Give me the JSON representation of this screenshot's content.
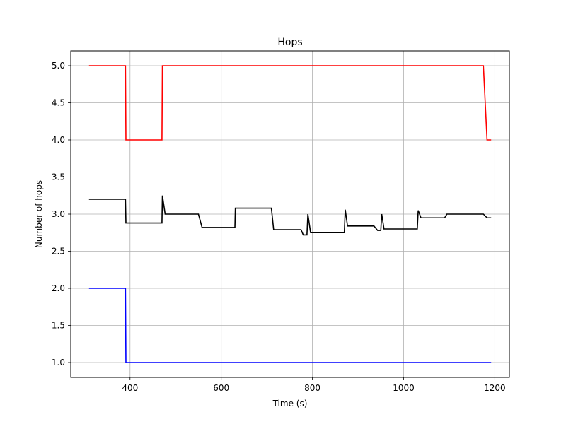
{
  "chart_data": {
    "type": "line",
    "title": "Hops",
    "xlabel": "Time (s)",
    "ylabel": "Number of hops",
    "xlim": [
      270,
      1232
    ],
    "ylim": [
      0.8,
      5.2
    ],
    "xticks": [
      400,
      600,
      800,
      1000,
      1200
    ],
    "yticks": [
      1.0,
      1.5,
      2.0,
      2.5,
      3.0,
      3.5,
      4.0,
      4.5,
      5.0
    ],
    "xtick_labels": [
      "400",
      "600",
      "800",
      "1000",
      "1200"
    ],
    "ytick_labels": [
      "1.0",
      "1.5",
      "2.0",
      "2.5",
      "3.0",
      "3.5",
      "4.0",
      "4.5",
      "5.0"
    ],
    "grid": true,
    "series": [
      {
        "color": "#ff0000",
        "x": [
          310,
          390,
          391,
          470,
          471,
          1175,
          1183,
          1192
        ],
        "y": [
          5.0,
          5.0,
          4.0,
          4.0,
          5.0,
          5.0,
          4.0,
          4.0
        ]
      },
      {
        "color": "#000000",
        "x": [
          310,
          390,
          391,
          470,
          471,
          477,
          550,
          558,
          630,
          631,
          636,
          710,
          715,
          775,
          780,
          788,
          790,
          796,
          870,
          872,
          877,
          935,
          943,
          950,
          952,
          957,
          1030,
          1032,
          1038,
          1090,
          1095,
          1175,
          1183,
          1192
        ],
        "y": [
          3.2,
          3.2,
          2.88,
          2.88,
          3.25,
          3.0,
          3.0,
          2.82,
          2.82,
          3.08,
          3.08,
          3.08,
          2.79,
          2.79,
          2.72,
          2.72,
          3.0,
          2.75,
          2.75,
          3.06,
          2.84,
          2.84,
          2.78,
          2.78,
          3.0,
          2.8,
          2.8,
          3.05,
          2.95,
          2.95,
          3.0,
          3.0,
          2.95,
          2.95
        ]
      },
      {
        "color": "#0000ff",
        "x": [
          310,
          390,
          391,
          1192
        ],
        "y": [
          2.0,
          2.0,
          1.0,
          1.0
        ]
      }
    ]
  }
}
